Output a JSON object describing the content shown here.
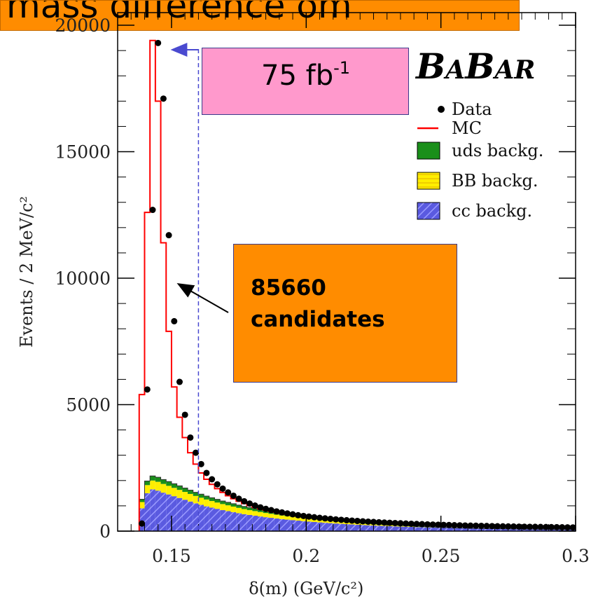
{
  "banner": {
    "text": "mass difference δm"
  },
  "annotations": {
    "lumi_value": "75 fb",
    "lumi_exp": "-1",
    "candidates_count": "85660",
    "candidates_word": "candidates"
  },
  "logo": {
    "B1": "B",
    "A1": "A",
    "B2": "B",
    "AR": "AR"
  },
  "colors": {
    "data": "#000000",
    "mc": "#ff0000",
    "uds": "#1a8f1a",
    "bb": "#ffee00",
    "cc": "#5a5ae0",
    "banner": "#ff8c00",
    "lumi_box": "#ff99cc"
  },
  "chart_data": {
    "type": "histogram",
    "xlabel": "δ(m) (GeV/c²)",
    "ylabel": "Events / 2 MeV/c²",
    "xlim": [
      0.13,
      0.3
    ],
    "ylim": [
      0,
      20500
    ],
    "x_ticks": [
      {
        "value": 0.15,
        "label": "0.15"
      },
      {
        "value": 0.2,
        "label": "0.2"
      },
      {
        "value": 0.25,
        "label": "0.25"
      },
      {
        "value": 0.3,
        "label": "0.3"
      }
    ],
    "y_ticks": [
      {
        "value": 0,
        "label": "0"
      },
      {
        "value": 5000,
        "label": "5000"
      },
      {
        "value": 10000,
        "label": "10000"
      },
      {
        "value": 15000,
        "label": "15000"
      },
      {
        "value": 20000,
        "label": "20000"
      }
    ],
    "bin_width": 0.002,
    "bin_centers": [
      0.139,
      0.141,
      0.143,
      0.145,
      0.147,
      0.149,
      0.151,
      0.153,
      0.155,
      0.157,
      0.159,
      0.161,
      0.163,
      0.165,
      0.167,
      0.169,
      0.171,
      0.173,
      0.175,
      0.177,
      0.179,
      0.181,
      0.183,
      0.185,
      0.187,
      0.189,
      0.191,
      0.193,
      0.195,
      0.197,
      0.199,
      0.201,
      0.203,
      0.205,
      0.207,
      0.209,
      0.211,
      0.213,
      0.215,
      0.217,
      0.219,
      0.221,
      0.223,
      0.225,
      0.227,
      0.229,
      0.231,
      0.233,
      0.235,
      0.237,
      0.239,
      0.241,
      0.243,
      0.245,
      0.247,
      0.249,
      0.251,
      0.253,
      0.255,
      0.257,
      0.259,
      0.261,
      0.263,
      0.265,
      0.267,
      0.269,
      0.271,
      0.273,
      0.275,
      0.277,
      0.279,
      0.281,
      0.283,
      0.285,
      0.287,
      0.289,
      0.291,
      0.293,
      0.295,
      0.297,
      0.299
    ],
    "series": [
      {
        "name": "Data",
        "kind": "points",
        "values": [
          300,
          5600,
          12700,
          19300,
          17100,
          11700,
          8300,
          5900,
          4600,
          3700,
          3100,
          2650,
          2300,
          2050,
          1850,
          1680,
          1530,
          1400,
          1280,
          1180,
          1090,
          1010,
          940,
          880,
          830,
          780,
          740,
          700,
          665,
          630,
          600,
          575,
          550,
          525,
          505,
          485,
          465,
          448,
          432,
          417,
          402,
          388,
          375,
          363,
          351,
          340,
          330,
          320,
          310,
          301,
          292,
          284,
          276,
          268,
          261,
          254,
          247,
          241,
          235,
          229,
          223,
          218,
          213,
          208,
          203,
          198,
          194,
          190,
          186,
          182,
          178,
          174,
          171,
          168,
          165,
          162,
          159,
          156,
          153,
          150,
          147
        ]
      },
      {
        "name": "MC",
        "kind": "step",
        "values": [
          5400,
          12600,
          19400,
          17000,
          11400,
          7900,
          5700,
          4500,
          3700,
          3100,
          2650,
          2300,
          2050,
          1850,
          1680,
          1530,
          1400,
          1280,
          1180,
          1090,
          1010,
          940,
          880,
          830,
          780,
          740,
          700,
          665,
          630,
          600,
          575,
          550,
          525,
          505,
          485,
          465,
          448,
          432,
          417,
          402,
          388,
          375,
          363,
          351,
          340,
          330,
          320,
          310,
          301,
          292,
          284,
          276,
          268,
          261,
          254,
          247,
          241,
          235,
          229,
          223,
          218,
          213,
          208,
          203,
          198,
          194,
          190,
          186,
          182,
          178,
          174,
          171,
          168,
          165,
          162,
          159,
          156,
          153,
          150,
          147,
          144
        ]
      },
      {
        "name": "uds backg.",
        "kind": "stack",
        "values": [
          110,
          160,
          180,
          180,
          175,
          170,
          165,
          160,
          155,
          150,
          145,
          140,
          135,
          130,
          126,
          122,
          118,
          114,
          110,
          106,
          102,
          98,
          94,
          90,
          87,
          84,
          81,
          78,
          75,
          72,
          69,
          66,
          63,
          60,
          58,
          56,
          54,
          52,
          50,
          48,
          46,
          44,
          42,
          40,
          38,
          36,
          34,
          32,
          30,
          28,
          26,
          24,
          22,
          20,
          18,
          16,
          14,
          12,
          10,
          8,
          6,
          4,
          2,
          2,
          2,
          2,
          2,
          2,
          2,
          2,
          2,
          2,
          2,
          2,
          2,
          2,
          2,
          2,
          2,
          2,
          2
        ]
      },
      {
        "name": "BB backg.",
        "kind": "stack",
        "values": [
          250,
          320,
          350,
          350,
          345,
          340,
          330,
          320,
          310,
          300,
          290,
          280,
          270,
          260,
          250,
          240,
          230,
          220,
          210,
          200,
          190,
          182,
          174,
          166,
          158,
          150,
          143,
          136,
          129,
          122,
          116,
          110,
          104,
          98,
          92,
          86,
          80,
          75,
          70,
          65,
          60,
          55,
          50,
          46,
          42,
          38,
          34,
          30,
          26,
          22,
          18,
          14,
          10,
          8,
          6,
          4,
          2,
          2,
          2,
          2,
          2,
          2,
          2,
          2,
          2,
          2,
          2,
          2,
          2,
          2,
          2,
          2,
          2,
          2,
          2,
          2,
          2,
          2,
          2,
          2,
          2
        ]
      },
      {
        "name": "cc backg.",
        "kind": "stack",
        "values": [
          900,
          1500,
          1650,
          1600,
          1520,
          1450,
          1380,
          1310,
          1240,
          1170,
          1100,
          1040,
          980,
          930,
          880,
          830,
          790,
          750,
          710,
          670,
          640,
          610,
          580,
          550,
          525,
          500,
          475,
          455,
          435,
          415,
          395,
          378,
          361,
          345,
          330,
          316,
          302,
          289,
          277,
          265,
          254,
          243,
          233,
          223,
          214,
          205,
          196,
          188,
          180,
          173,
          166,
          159,
          153,
          147,
          141,
          136,
          131,
          126,
          121,
          117,
          113,
          109,
          105,
          101,
          98,
          95,
          92,
          89,
          86,
          83,
          80,
          78,
          76,
          74,
          72,
          70,
          68,
          66,
          64,
          62,
          60
        ]
      }
    ]
  }
}
